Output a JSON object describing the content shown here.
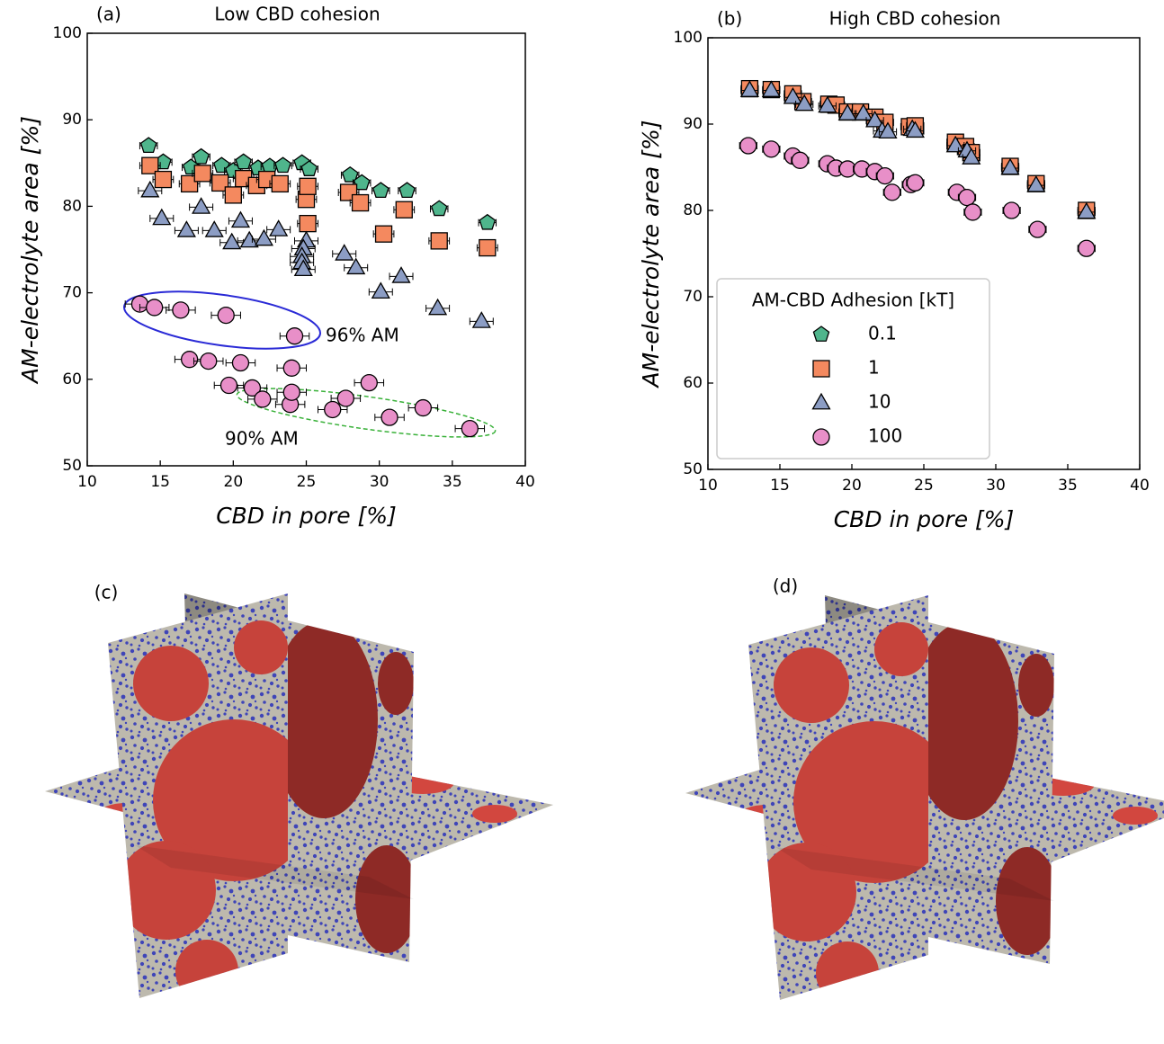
{
  "chart_data": [
    {
      "type": "scatter",
      "panel_label": "(a)",
      "title": "Low CBD cohesion",
      "xlabel": "CBD in pore [%]",
      "ylabel": "AM-electrolyte area [%]",
      "xlim": [
        10,
        40
      ],
      "ylim": [
        50,
        100
      ],
      "xticks": [
        10,
        15,
        20,
        25,
        30,
        35,
        40
      ],
      "yticks": [
        50,
        60,
        70,
        80,
        90,
        100
      ],
      "annotations": [
        "96% AM",
        "90% AM"
      ],
      "series": [
        {
          "marker": "pentagon",
          "color": "#4fb58c",
          "xerr": 0.6,
          "x": [
            14.2,
            15.2,
            17.1,
            17.8,
            19.2,
            20.0,
            20.7,
            21.7,
            22.5,
            23.4,
            24.7,
            25.2,
            28.0,
            28.8,
            30.1,
            31.9,
            34.1,
            37.4
          ],
          "y": [
            87.0,
            85.1,
            84.5,
            85.7,
            84.7,
            84.1,
            85.1,
            84.4,
            84.6,
            84.7,
            85.0,
            84.3,
            83.6,
            82.7,
            81.8,
            81.8,
            79.7,
            78.1
          ]
        },
        {
          "marker": "square",
          "color": "#f4895f",
          "xerr": 0.7,
          "x": [
            14.3,
            15.2,
            17.0,
            17.9,
            19.1,
            20.0,
            20.7,
            21.6,
            22.3,
            23.2,
            25.0,
            25.1,
            25.1,
            27.9,
            28.7,
            30.3,
            31.7,
            34.1,
            37.4
          ],
          "y": [
            84.7,
            83.1,
            82.6,
            83.8,
            82.7,
            81.3,
            83.2,
            82.4,
            83.1,
            82.6,
            80.8,
            82.3,
            78.0,
            81.6,
            80.4,
            76.8,
            79.6,
            76.0,
            75.2
          ]
        },
        {
          "marker": "triangle",
          "color": "#8c9dc4",
          "xerr": 0.8,
          "x": [
            14.3,
            15.1,
            16.8,
            17.8,
            18.7,
            19.9,
            20.5,
            21.1,
            22.1,
            23.1,
            25.0,
            24.8,
            24.7,
            24.7,
            24.8,
            27.6,
            28.4,
            30.1,
            31.5,
            34.0,
            37.0
          ],
          "y": [
            81.8,
            78.6,
            77.2,
            79.9,
            77.2,
            75.8,
            78.3,
            76.0,
            76.2,
            77.3,
            76.0,
            75.1,
            74.2,
            73.5,
            72.7,
            74.5,
            72.9,
            70.1,
            71.9,
            68.2,
            66.7
          ]
        },
        {
          "marker": "circle",
          "color": "#e88fc8",
          "xerr": 1.0,
          "x": [
            13.6,
            14.6,
            16.4,
            19.5,
            24.2,
            17.0,
            18.3,
            20.5,
            24.0,
            19.7,
            21.3,
            22.0,
            23.9,
            24.0,
            27.7,
            29.3,
            26.8,
            30.7,
            33.0,
            36.2
          ],
          "y": [
            68.7,
            68.3,
            68.0,
            67.4,
            65.0,
            62.3,
            62.1,
            61.9,
            61.3,
            59.3,
            59.0,
            57.7,
            57.1,
            58.5,
            57.8,
            59.6,
            56.5,
            55.6,
            56.7,
            54.3
          ]
        }
      ]
    },
    {
      "type": "scatter",
      "panel_label": "(b)",
      "title": "High CBD cohesion",
      "xlabel": "CBD in pore [%]",
      "ylabel": "AM-electrolyte area [%]",
      "xlim": [
        10,
        40
      ],
      "ylim": [
        50,
        100
      ],
      "xticks": [
        10,
        15,
        20,
        25,
        30,
        35,
        40
      ],
      "yticks": [
        50,
        60,
        70,
        80,
        90,
        100
      ],
      "legend": "lower left",
      "legend_title": "AM-CBD Adhesion [kT]",
      "series": [
        {
          "name": "0.1",
          "marker": "pentagon",
          "color": "#4fb58c",
          "xerr": 0.6,
          "x": [],
          "y": []
        },
        {
          "name": "1",
          "marker": "square",
          "color": "#f4895f",
          "xerr": 0.6,
          "x": [
            12.9,
            14.4,
            15.9,
            16.6,
            18.4,
            18.9,
            19.7,
            20.6,
            21.6,
            22.3,
            24.0,
            24.4,
            27.2,
            27.9,
            28.3,
            31.0,
            32.8,
            36.3
          ],
          "y": [
            94.1,
            94.0,
            93.5,
            92.6,
            92.3,
            92.2,
            91.4,
            91.4,
            90.8,
            90.2,
            89.7,
            89.8,
            87.9,
            87.4,
            86.7,
            85.1,
            83.1,
            80.0
          ]
        },
        {
          "name": "10",
          "marker": "triangle",
          "color": "#8c9dc4",
          "xerr": 0.6,
          "x": [
            12.9,
            14.4,
            15.9,
            16.7,
            18.3,
            19.7,
            20.8,
            21.6,
            22.1,
            22.5,
            24.2,
            24.4,
            27.2,
            28.0,
            28.3,
            31.0,
            32.8,
            36.3
          ],
          "y": [
            93.9,
            93.9,
            93.1,
            92.3,
            92.1,
            91.2,
            91.2,
            90.4,
            89.2,
            89.1,
            89.4,
            89.2,
            87.5,
            86.9,
            86.1,
            84.9,
            82.9,
            79.8
          ]
        },
        {
          "name": "100",
          "marker": "circle",
          "color": "#e88fc8",
          "xerr": 0.6,
          "x": [
            12.8,
            14.4,
            15.9,
            16.4,
            18.3,
            18.9,
            19.7,
            20.7,
            21.6,
            22.3,
            22.8,
            24.1,
            24.4,
            27.3,
            28.0,
            28.4,
            31.1,
            32.9,
            36.3
          ],
          "y": [
            87.5,
            87.1,
            86.3,
            85.8,
            85.4,
            84.9,
            84.8,
            84.8,
            84.5,
            84.0,
            82.1,
            83.0,
            83.2,
            82.1,
            81.5,
            79.8,
            80.0,
            77.8,
            75.6
          ]
        }
      ]
    }
  ],
  "panels": [
    {
      "label": "(c)"
    },
    {
      "label": "(d)"
    }
  ]
}
